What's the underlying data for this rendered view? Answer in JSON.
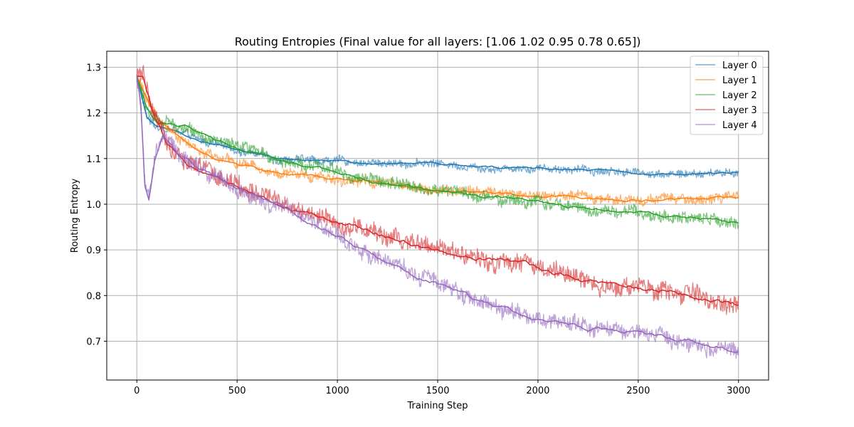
{
  "chart_data": {
    "type": "line",
    "title": "Routing Entropies (Final value for all layers: [1.06 1.02 0.95 0.78 0.65])",
    "xlabel": "Training Step",
    "ylabel": "Routing Entropy",
    "xlim": [
      -150,
      3150
    ],
    "ylim": [
      0.615,
      1.335
    ],
    "xticks": [
      0,
      500,
      1000,
      1500,
      2000,
      2500,
      3000
    ],
    "xtick_labels": [
      "0",
      "500",
      "1000",
      "1500",
      "2000",
      "2500",
      "3000"
    ],
    "yticks": [
      0.7,
      0.8,
      0.9,
      1.0,
      1.1,
      1.2,
      1.3
    ],
    "ytick_labels": [
      "0.7",
      "0.8",
      "0.9",
      "1.0",
      "1.1",
      "1.2",
      "1.3"
    ],
    "grid": true,
    "legend_position": "top-right",
    "raw_alpha": 0.6,
    "series": [
      {
        "name": "Layer 0",
        "color": "#1f77b4",
        "noise": 0.008,
        "smoothed": [
          [
            0,
            1.28
          ],
          [
            50,
            1.19
          ],
          [
            100,
            1.17
          ],
          [
            200,
            1.16
          ],
          [
            300,
            1.14
          ],
          [
            400,
            1.13
          ],
          [
            500,
            1.12
          ],
          [
            700,
            1.1
          ],
          [
            900,
            1.095
          ],
          [
            1000,
            1.095
          ],
          [
            1200,
            1.09
          ],
          [
            1500,
            1.09
          ],
          [
            1750,
            1.08
          ],
          [
            2000,
            1.08
          ],
          [
            2250,
            1.075
          ],
          [
            2500,
            1.07
          ],
          [
            2750,
            1.065
          ],
          [
            3000,
            1.07
          ]
        ]
      },
      {
        "name": "Layer 1",
        "color": "#ff7f0e",
        "noise": 0.01,
        "smoothed": [
          [
            0,
            1.28
          ],
          [
            30,
            1.25
          ],
          [
            100,
            1.19
          ],
          [
            200,
            1.15
          ],
          [
            300,
            1.12
          ],
          [
            400,
            1.1
          ],
          [
            500,
            1.09
          ],
          [
            700,
            1.07
          ],
          [
            900,
            1.06
          ],
          [
            1000,
            1.055
          ],
          [
            1200,
            1.05
          ],
          [
            1500,
            1.03
          ],
          [
            1750,
            1.025
          ],
          [
            2000,
            1.02
          ],
          [
            2250,
            1.015
          ],
          [
            2500,
            1.01
          ],
          [
            2750,
            1.01
          ],
          [
            3000,
            1.015
          ]
        ]
      },
      {
        "name": "Layer 2",
        "color": "#2ca02c",
        "noise": 0.012,
        "smoothed": [
          [
            0,
            1.28
          ],
          [
            50,
            1.21
          ],
          [
            100,
            1.18
          ],
          [
            250,
            1.17
          ],
          [
            400,
            1.14
          ],
          [
            500,
            1.12
          ],
          [
            700,
            1.1
          ],
          [
            900,
            1.08
          ],
          [
            1000,
            1.07
          ],
          [
            1200,
            1.05
          ],
          [
            1500,
            1.03
          ],
          [
            1750,
            1.015
          ],
          [
            2000,
            1.005
          ],
          [
            2250,
            0.99
          ],
          [
            2500,
            0.98
          ],
          [
            2750,
            0.97
          ],
          [
            3000,
            0.96
          ]
        ]
      },
      {
        "name": "Layer 3",
        "color": "#d62728",
        "noise": 0.018,
        "smoothed": [
          [
            0,
            1.28
          ],
          [
            30,
            1.28
          ],
          [
            80,
            1.2
          ],
          [
            150,
            1.13
          ],
          [
            250,
            1.09
          ],
          [
            400,
            1.06
          ],
          [
            600,
            1.02
          ],
          [
            800,
            0.99
          ],
          [
            1000,
            0.96
          ],
          [
            1250,
            0.93
          ],
          [
            1500,
            0.9
          ],
          [
            1750,
            0.88
          ],
          [
            2000,
            0.86
          ],
          [
            2250,
            0.83
          ],
          [
            2500,
            0.815
          ],
          [
            2750,
            0.8
          ],
          [
            3000,
            0.78
          ]
        ]
      },
      {
        "name": "Layer 4",
        "color": "#9467bd",
        "noise": 0.016,
        "smoothed": [
          [
            0,
            1.28
          ],
          [
            20,
            1.22
          ],
          [
            40,
            1.04
          ],
          [
            60,
            1.01
          ],
          [
            90,
            1.1
          ],
          [
            130,
            1.15
          ],
          [
            200,
            1.11
          ],
          [
            300,
            1.08
          ],
          [
            400,
            1.06
          ],
          [
            500,
            1.03
          ],
          [
            700,
            1.0
          ],
          [
            900,
            0.95
          ],
          [
            1000,
            0.93
          ],
          [
            1250,
            0.87
          ],
          [
            1500,
            0.83
          ],
          [
            1750,
            0.78
          ],
          [
            2000,
            0.75
          ],
          [
            2250,
            0.73
          ],
          [
            2500,
            0.72
          ],
          [
            2750,
            0.7
          ],
          [
            3000,
            0.68
          ]
        ]
      }
    ]
  }
}
